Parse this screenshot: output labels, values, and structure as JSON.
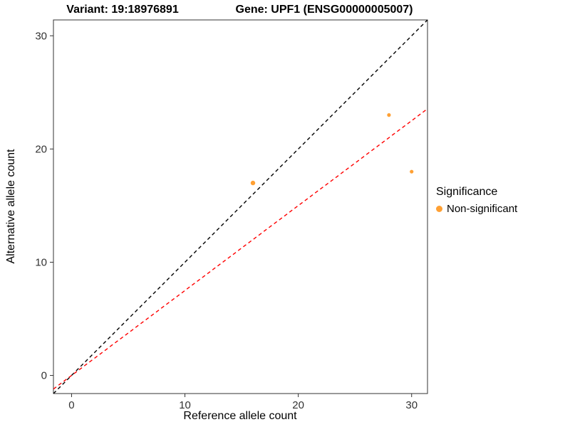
{
  "chart_data": {
    "type": "scatter",
    "title_variant": "Variant: 19:18976891",
    "title_gene": "Gene: UPF1 (ENSG00000005007)",
    "xlabel": "Reference allele count",
    "ylabel": "Alternative allele count",
    "xlim": [
      -1.6,
      31.4
    ],
    "ylim": [
      -1.6,
      31.4
    ],
    "xticks": [
      0,
      10,
      20,
      30
    ],
    "yticks": [
      0,
      10,
      20,
      30
    ],
    "grid": false,
    "panel_border_color": "#333333",
    "tick_color": "#333333",
    "tick_label_color": "#333333",
    "point_color": "#FFA033",
    "points": [
      {
        "x": 16,
        "y": 17,
        "r": 3.2
      },
      {
        "x": 28,
        "y": 23,
        "r": 2.6
      },
      {
        "x": 30,
        "y": 18,
        "r": 2.6
      }
    ],
    "lines": [
      {
        "name": "identity-line",
        "slope": 1,
        "intercept": 0,
        "color": "#000000",
        "dash": "5,4"
      },
      {
        "name": "ratio-line",
        "slope": 0.75,
        "intercept": 0,
        "color": "#FF0000",
        "dash": "5,4"
      }
    ],
    "legend": {
      "title": "Significance",
      "items": [
        {
          "label": "Non-significant",
          "color": "#FFA033"
        }
      ],
      "position": "right"
    }
  }
}
